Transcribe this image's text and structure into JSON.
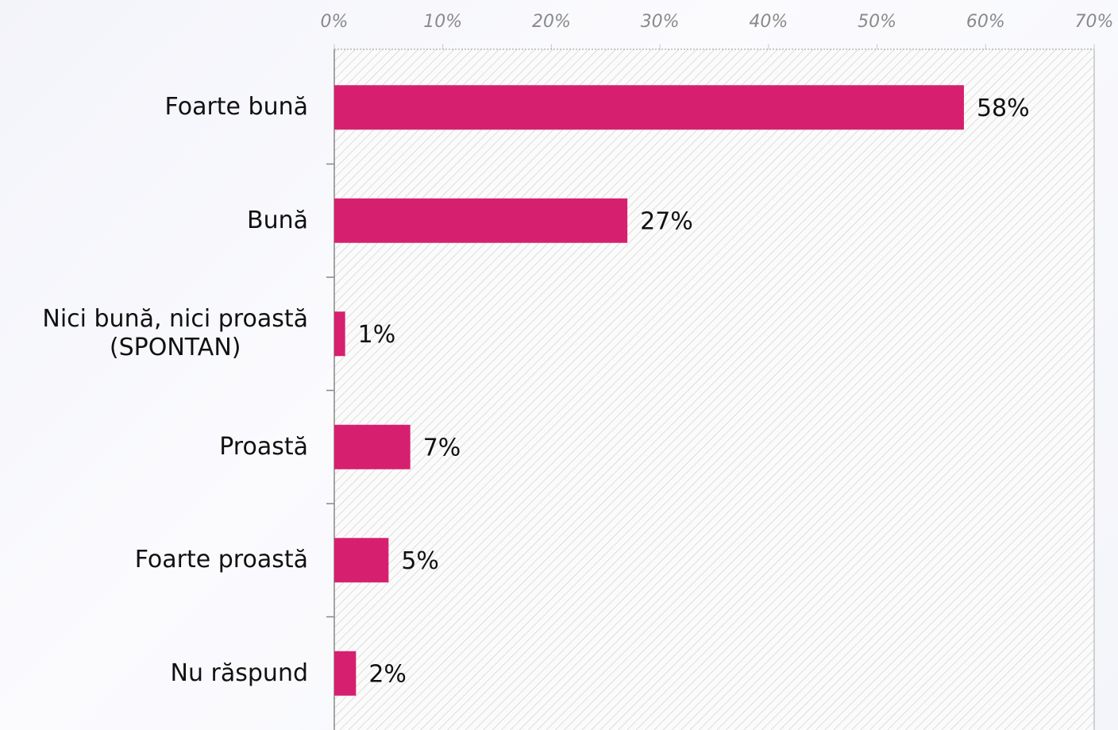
{
  "chart_data": {
    "type": "bar",
    "orientation": "horizontal",
    "categories": [
      "Foarte bună",
      "Bună",
      "Nici bună, nici proastă\n(SPONTAN)",
      "Proastă",
      "Foarte proastă",
      "Nu răspund"
    ],
    "values": [
      58,
      27,
      1,
      7,
      5,
      2
    ],
    "value_labels": [
      "58%",
      "27%",
      "1%",
      "7%",
      "5%",
      "2%"
    ],
    "color": "#d6206f",
    "xlim": [
      0,
      70
    ],
    "xticks": [
      {
        "value": 0,
        "label": "0%"
      },
      {
        "value": 10,
        "label": "10%"
      },
      {
        "value": 20,
        "label": "20%"
      },
      {
        "value": 30,
        "label": "30%"
      },
      {
        "value": 40,
        "label": "40%"
      },
      {
        "value": 50,
        "label": "50%"
      },
      {
        "value": 60,
        "label": "60%"
      },
      {
        "value": 70,
        "label": "70%"
      }
    ]
  }
}
